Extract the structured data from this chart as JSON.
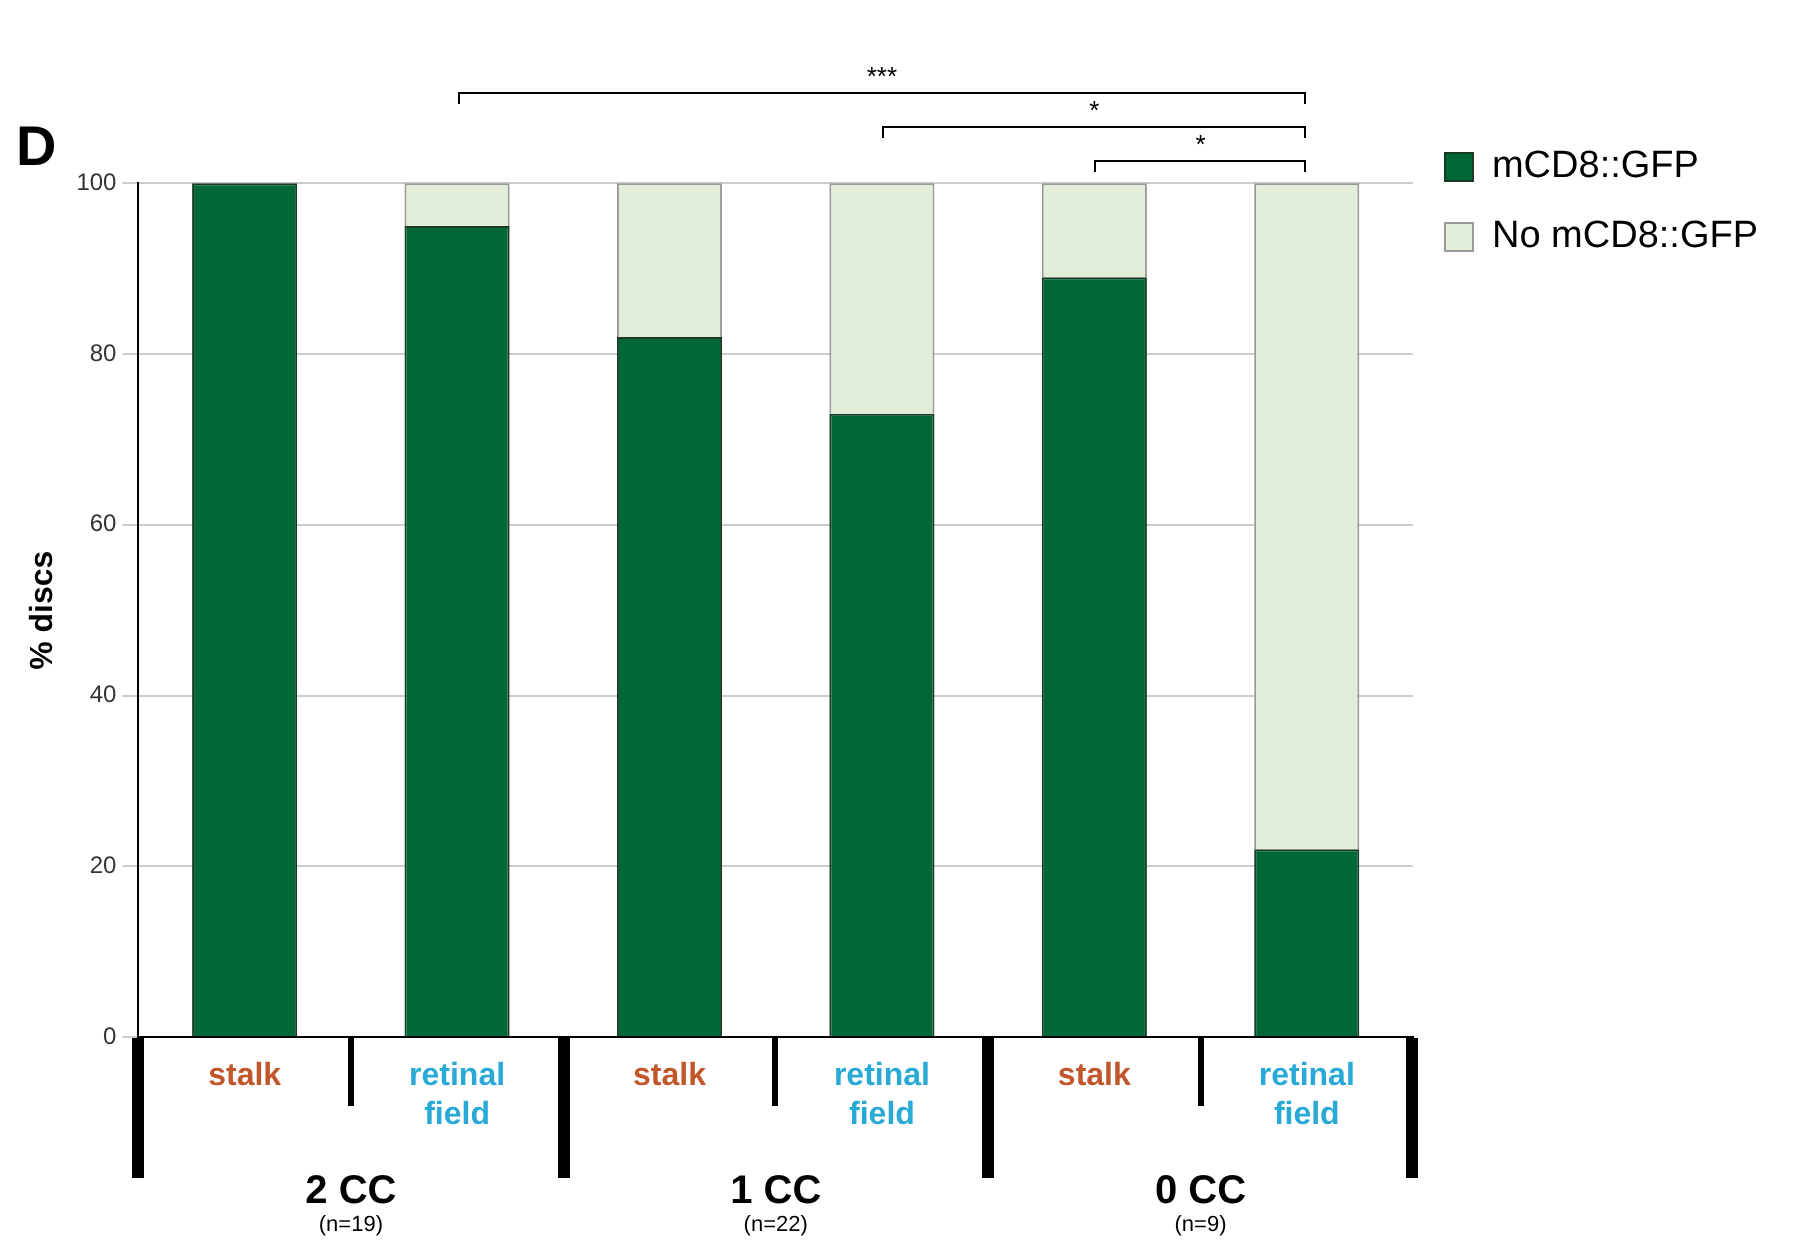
{
  "chart_data": {
    "type": "bar",
    "title": "D",
    "ylabel": "% discs",
    "stacked": true,
    "categories": [
      "stalk",
      "retinal field",
      "stalk",
      "retinal field",
      "stalk",
      "retinal field"
    ],
    "series": [
      {
        "name": "mCD8::GFP",
        "color": "#006837",
        "values": [
          100,
          95,
          82,
          73,
          89,
          22
        ]
      },
      {
        "name": "No mCD8::GFP",
        "color": "#e2eed9",
        "values": [
          0,
          5,
          18,
          27,
          11,
          78
        ]
      }
    ],
    "ylim": [
      0,
      100
    ],
    "yticks": [
      0,
      20,
      40,
      60,
      80,
      100
    ],
    "grid": "y",
    "legend": "right",
    "annotations": [
      "2 CC",
      "(n=19)",
      "1 CC",
      "(n=22)",
      "0 CC",
      "(n=9)",
      "***",
      "*",
      "*"
    ]
  }
}
